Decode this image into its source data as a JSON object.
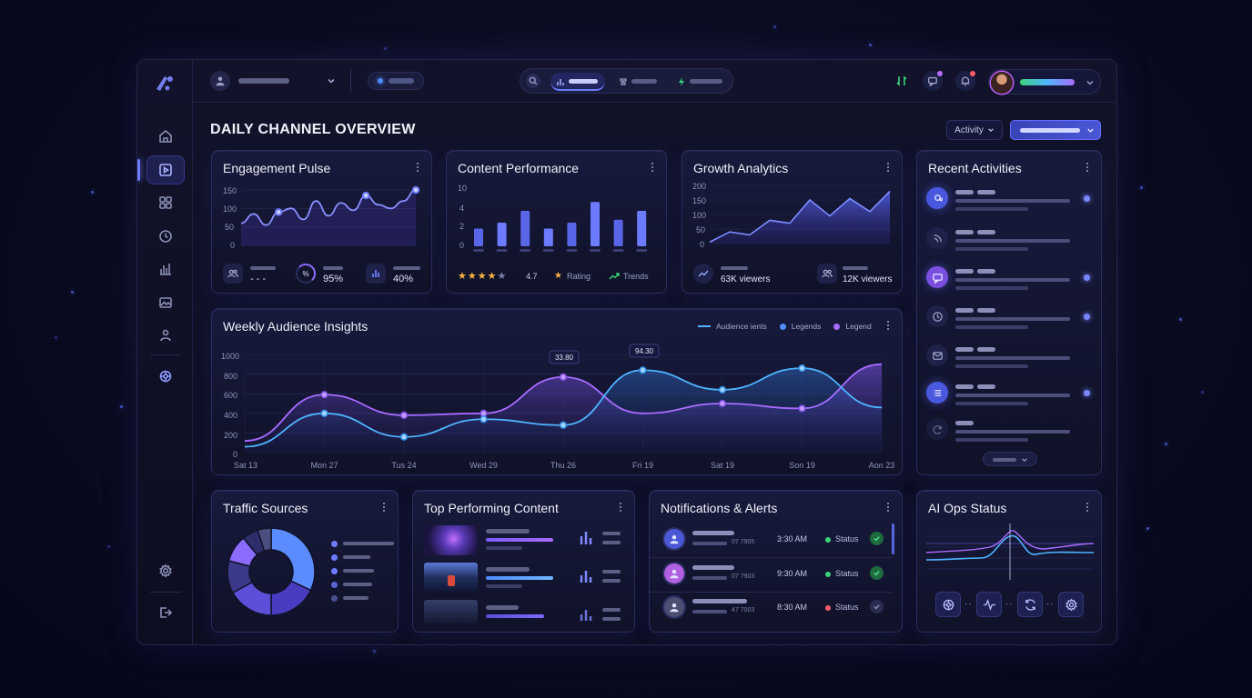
{
  "page": {
    "title": "DAILY CHANNEL OVERVIEW"
  },
  "header": {
    "filter_label": "Activity"
  },
  "engagement": {
    "title": "Engagement Pulse",
    "y_ticks": [
      "150",
      "100",
      "50",
      "0"
    ],
    "stats": [
      {
        "value": "- - -"
      },
      {
        "value": "95%",
        "icon_text": "%"
      },
      {
        "value": "40%"
      }
    ]
  },
  "content_performance": {
    "title": "Content Performance",
    "y_ticks": [
      "10",
      "4",
      "2",
      "0"
    ],
    "rating": "4.7",
    "rating_label": "Rating",
    "trends_label": "Trends"
  },
  "growth": {
    "title": "Growth Analytics",
    "y_ticks": [
      "200",
      "150",
      "100",
      "50",
      "0"
    ],
    "stats": [
      {
        "value": "63K viewers"
      },
      {
        "value": "12K viewers"
      }
    ]
  },
  "recent": {
    "title": "Recent Activities"
  },
  "weekly": {
    "title": "Weekly Audience Insights",
    "legend": [
      "Audience ients",
      "Legends",
      "Legend"
    ],
    "y_ticks": [
      "1000",
      "800",
      "600",
      "400",
      "200",
      "0"
    ],
    "x_ticks": [
      "Sat 13",
      "Mon 27",
      "Tus 24",
      "Wed 29",
      "Thu 26",
      "Fri 19",
      "Sat 19",
      "Son 19",
      "Aon 23"
    ],
    "tooltip_a": "33.80",
    "tooltip_b": "94.30"
  },
  "traffic": {
    "title": "Traffic Sources"
  },
  "top_content": {
    "title": "Top Performing Content"
  },
  "notifications": {
    "title": "Notifications & Alerts",
    "items": [
      {
        "sub": "07 7905",
        "time": "3:30 AM",
        "status": "Status",
        "state": "ok"
      },
      {
        "sub": "07 7903",
        "time": "9:30 AM",
        "status": "Status",
        "state": "ok"
      },
      {
        "sub": "47 7003",
        "time": "8:30 AM",
        "status": "Status",
        "state": "warn"
      }
    ]
  },
  "ai_ops": {
    "title": "AI Ops Status"
  },
  "colors": {
    "accent": "#6c7bff",
    "purple": "#a86bff",
    "cyan": "#4fb4ff",
    "ok": "#3ad27a",
    "warn": "#ff5a6a"
  },
  "chart_data": [
    {
      "type": "line",
      "title": "Engagement Pulse",
      "ylim": [
        0,
        150
      ],
      "x": [
        1,
        2,
        3,
        4,
        5,
        6,
        7,
        8,
        9,
        10,
        11,
        12,
        13,
        14,
        15
      ],
      "series": [
        {
          "values": [
            60,
            85,
            55,
            90,
            100,
            70,
            120,
            80,
            115,
            95,
            135,
            110,
            100,
            120,
            150
          ]
        }
      ]
    },
    {
      "type": "bar",
      "title": "Content Performance",
      "ylim": [
        0,
        10
      ],
      "categories": [
        "1",
        "2",
        "3",
        "4",
        "5",
        "6",
        "7",
        "8"
      ],
      "values": [
        3,
        4,
        6,
        3,
        4,
        7.5,
        4.5,
        6
      ]
    },
    {
      "type": "area",
      "title": "Growth Analytics",
      "ylim": [
        0,
        200
      ],
      "x": [
        1,
        2,
        3,
        4,
        5,
        6,
        7,
        8,
        9,
        10
      ],
      "series": [
        {
          "values": [
            5,
            40,
            30,
            80,
            70,
            150,
            95,
            155,
            110,
            180
          ]
        }
      ]
    },
    {
      "type": "line",
      "title": "Weekly Audience Insights",
      "ylim": [
        0,
        1000
      ],
      "categories": [
        "Sat 13",
        "Mon 27",
        "Tus 24",
        "Wed 29",
        "Thu 26",
        "Fri 19",
        "Sat 19",
        "Son 19",
        "Aon 23"
      ],
      "series": [
        {
          "name": "Audience ients",
          "values": [
            60,
            400,
            160,
            340,
            280,
            840,
            640,
            860,
            460
          ]
        },
        {
          "name": "Legend",
          "values": [
            120,
            590,
            380,
            400,
            770,
            400,
            500,
            450,
            900
          ]
        }
      ]
    },
    {
      "type": "pie",
      "title": "Traffic Sources",
      "values": [
        32,
        18,
        17,
        12,
        10,
        6,
        5
      ]
    }
  ]
}
